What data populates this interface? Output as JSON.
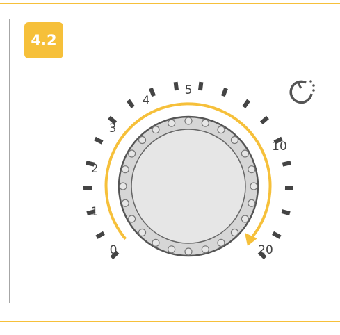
{
  "badge": "4.2",
  "dial": {
    "labels": [
      "0",
      "1",
      "2",
      "3",
      "4",
      "5",
      "10",
      "20"
    ]
  }
}
